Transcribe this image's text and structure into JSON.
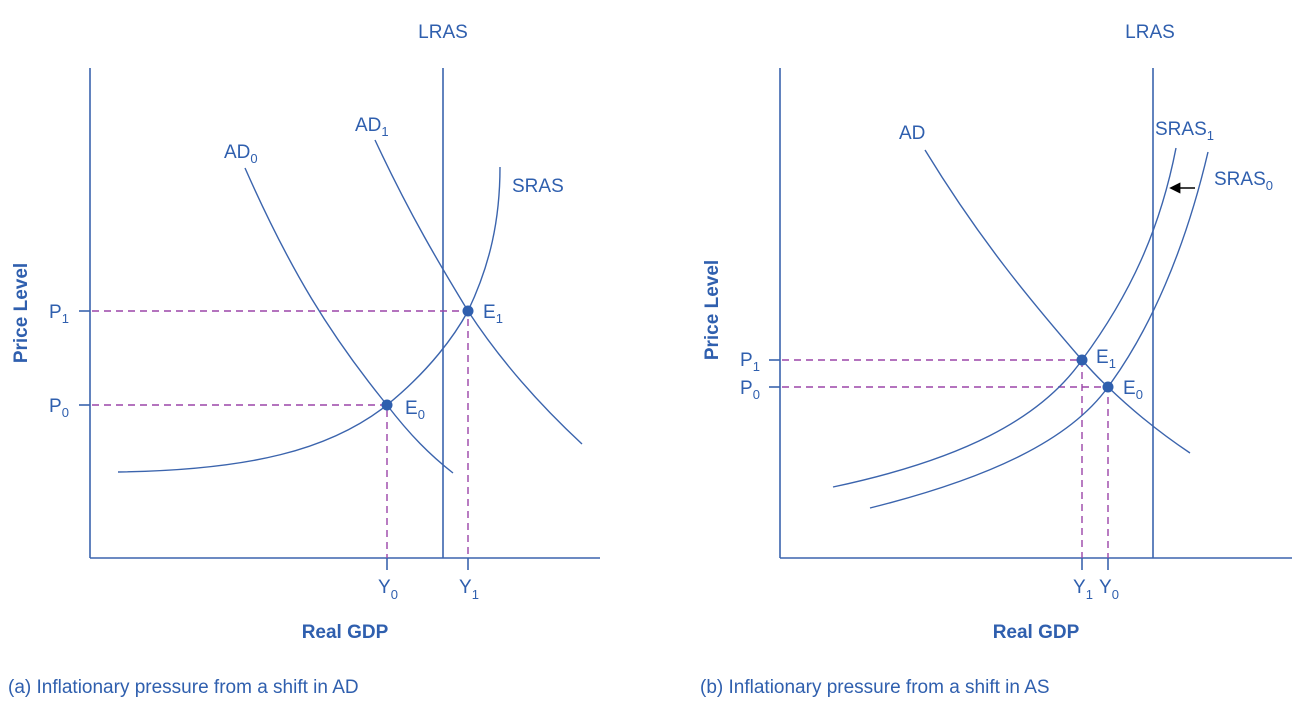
{
  "colors": {
    "curve": "#3b64ad",
    "dashed": "#9b45a8",
    "text": "#2f5fae",
    "arrow": "#000000"
  },
  "panels": [
    {
      "caption": "(a) Inflationary pressure from a shift in AD",
      "y_axis_label": "Price Level",
      "x_axis_label": "Real GDP",
      "lras": "LRAS",
      "curves": {
        "ad0": {
          "main": "AD",
          "sub": "0"
        },
        "ad1": {
          "main": "AD",
          "sub": "1"
        },
        "sras": {
          "main": "SRAS",
          "sub": ""
        }
      },
      "points": {
        "e0": {
          "main": "E",
          "sub": "0"
        },
        "e1": {
          "main": "E",
          "sub": "1"
        }
      },
      "ticks": {
        "p0": {
          "main": "P",
          "sub": "0"
        },
        "p1": {
          "main": "P",
          "sub": "1"
        },
        "y0": {
          "main": "Y",
          "sub": "0"
        },
        "y1": {
          "main": "Y",
          "sub": "1"
        }
      }
    },
    {
      "caption": "(b) Inflationary pressure from a shift in AS",
      "y_axis_label": "Price Level",
      "x_axis_label": "Real GDP",
      "lras": "LRAS",
      "curves": {
        "ad": {
          "main": "AD",
          "sub": ""
        },
        "sras1": {
          "main": "SRAS",
          "sub": "1"
        },
        "sras0": {
          "main": "SRAS",
          "sub": "0"
        }
      },
      "points": {
        "e0": {
          "main": "E",
          "sub": "0"
        },
        "e1": {
          "main": "E",
          "sub": "1"
        }
      },
      "ticks": {
        "p0": {
          "main": "P",
          "sub": "0"
        },
        "p1": {
          "main": "P",
          "sub": "1"
        },
        "y0": {
          "main": "Y",
          "sub": "0"
        },
        "y1": {
          "main": "Y",
          "sub": "1"
        }
      }
    }
  ]
}
